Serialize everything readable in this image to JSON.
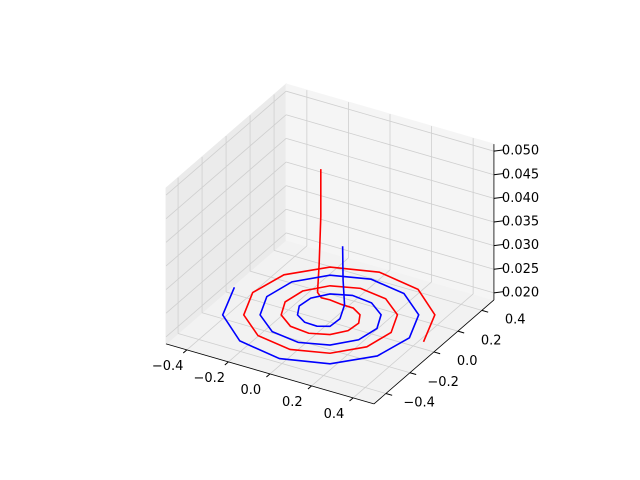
{
  "chart_data": {
    "type": "line3d",
    "series": [
      {
        "color": "#ff0000",
        "x": [
          0.45,
          0.378,
          0.212,
          0,
          -0.199,
          -0.333,
          -0.372,
          -0.311,
          -0.173,
          0,
          0.16,
          0.266,
          0.294,
          0.243,
          0.134,
          0,
          -0.121,
          -0.198,
          -0.216,
          -0.176,
          -0.095,
          0,
          0.082,
          0.131,
          0.138,
          0.108,
          0.056,
          0,
          -0.043,
          -0.063,
          -0.06,
          -0.055,
          -0.05,
          -0.05
        ],
        "y": [
          0,
          0.219,
          0.367,
          0.411,
          0.345,
          0.193,
          0,
          -0.18,
          -0.3,
          -0.333,
          -0.277,
          -0.154,
          0,
          0.141,
          0.232,
          0.255,
          0.21,
          0.115,
          0,
          -0.102,
          -0.165,
          -0.177,
          -0.142,
          -0.076,
          0,
          0.063,
          0.097,
          0.099,
          0.074,
          0.037,
          0,
          0.005,
          0.01,
          0.01
        ],
        "z": [
          0.02,
          0.02,
          0.02,
          0.02,
          0.02,
          0.02,
          0.02,
          0.02,
          0.02,
          0.02,
          0.02,
          0.02,
          0.02,
          0.02,
          0.02,
          0.02,
          0.02,
          0.02,
          0.02,
          0.02,
          0.02,
          0.02,
          0.02,
          0.02,
          0.02,
          0.02,
          0.02,
          0.02,
          0.021,
          0.022,
          0.024,
          0.03,
          0.04,
          0.05
        ]
      },
      {
        "color": "#0000ff",
        "x": [
          -0.46,
          -0.387,
          -0.217,
          0,
          0.204,
          0.342,
          0.382,
          0.32,
          0.178,
          0,
          -0.165,
          -0.275,
          -0.304,
          -0.252,
          -0.139,
          0,
          0.126,
          0.207,
          0.226,
          0.184,
          0.1,
          0,
          -0.087,
          -0.139,
          -0.148,
          -0.117,
          -0.061,
          0,
          0.048,
          0.072,
          0.07,
          0.06,
          0.055
        ],
        "y": [
          0,
          -0.224,
          -0.376,
          -0.421,
          -0.353,
          -0.198,
          0,
          0.185,
          0.308,
          0.343,
          0.286,
          0.159,
          0,
          -0.146,
          -0.241,
          -0.265,
          -0.218,
          -0.12,
          0,
          0.107,
          0.173,
          0.187,
          0.151,
          0.081,
          0,
          -0.068,
          -0.106,
          -0.109,
          -0.083,
          -0.042,
          0,
          0.005,
          0.01
        ],
        "z": [
          0.02,
          0.02,
          0.02,
          0.02,
          0.02,
          0.02,
          0.02,
          0.02,
          0.02,
          0.02,
          0.02,
          0.02,
          0.02,
          0.02,
          0.02,
          0.02,
          0.02,
          0.02,
          0.02,
          0.02,
          0.02,
          0.02,
          0.02,
          0.02,
          0.02,
          0.02,
          0.02,
          0.02,
          0.02,
          0.021,
          0.023,
          0.028,
          0.035
        ]
      }
    ],
    "xlim": [
      -0.5,
      0.5
    ],
    "ylim": [
      -0.5,
      0.5
    ],
    "zlim": [
      0.0185,
      0.0515
    ],
    "xticks": [
      {
        "value": -0.4,
        "label": "−0.4"
      },
      {
        "value": -0.2,
        "label": "−0.2"
      },
      {
        "value": 0,
        "label": "0.0"
      },
      0.2,
      0.4
    ],
    "yticks": [
      {
        "value": -0.4,
        "label": "−0.4"
      },
      {
        "value": -0.2,
        "label": "−0.2"
      },
      {
        "value": 0,
        "label": "0.0"
      },
      0.2,
      0.4
    ],
    "zticks": [
      {
        "value": 0.02,
        "label": "0.020"
      },
      {
        "value": 0.025,
        "label": "0.025"
      },
      {
        "value": 0.03,
        "label": "0.030"
      },
      {
        "value": 0.035,
        "label": "0.035"
      },
      {
        "value": 0.04,
        "label": "0.040"
      },
      {
        "value": 0.045,
        "label": "0.045"
      },
      {
        "value": 0.05,
        "label": "0.050"
      }
    ],
    "grid": true
  }
}
